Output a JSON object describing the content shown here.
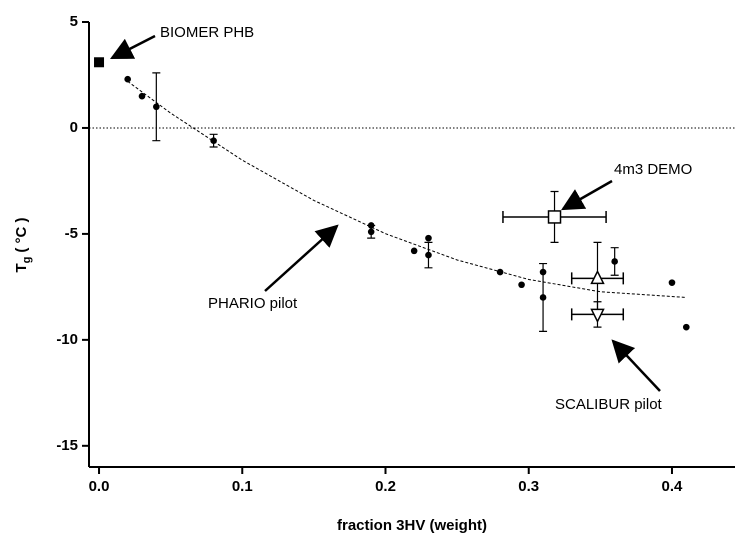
{
  "chart_data": {
    "type": "scatter",
    "x_label": "fraction 3HV (weight)",
    "y_label": {
      "main": "T",
      "sub": "g",
      "unit": "( °C )"
    },
    "xlim": [
      -0.007,
      0.444
    ],
    "ylim": [
      -16,
      5
    ],
    "xticks": [
      {
        "value": 0,
        "label": "0.0"
      },
      0.1,
      0.2,
      0.3,
      0.4
    ],
    "yticks": [
      5,
      0,
      -5,
      -10,
      -15
    ],
    "reference_line": 0,
    "color": "#000000",
    "series": [
      {
        "marker": "dot",
        "x": [
          0.02,
          0.03,
          0.04,
          0.08,
          0.19,
          0.19,
          0.22,
          0.23,
          0.23,
          0.28,
          0.295,
          0.31,
          0.31,
          0.36,
          0.4,
          0.41
        ],
        "values": [
          2.3,
          1.5,
          1.0,
          -0.6,
          -4.6,
          -4.9,
          -5.8,
          -5.2,
          -6.0,
          -6.8,
          -7.4,
          -6.8,
          -8.0,
          -6.3,
          -7.3,
          -9.4
        ],
        "yerr": [
          null,
          null,
          1.6,
          0.3,
          null,
          0.3,
          null,
          null,
          0.6,
          null,
          null,
          null,
          1.6,
          0.65,
          null,
          null
        ]
      },
      {
        "marker": "filled-square",
        "x": [
          0
        ],
        "values": [
          3.1
        ]
      },
      {
        "marker": "open-square",
        "x": [
          0.318
        ],
        "values": [
          -4.2
        ],
        "xerr": [
          0.036
        ],
        "yerr": [
          1.2
        ]
      },
      {
        "marker": "triangle-up",
        "x": [
          0.348
        ],
        "values": [
          -7.1
        ],
        "xerr": [
          0.018
        ],
        "yerr": [
          1.7
        ]
      },
      {
        "marker": "triangle-down",
        "x": [
          0.348
        ],
        "values": [
          -8.8
        ],
        "xerr": [
          0.018
        ],
        "yerr": [
          0.6
        ]
      }
    ],
    "fit": {
      "x": [
        0.02,
        0.05,
        0.1,
        0.15,
        0.2,
        0.25,
        0.3,
        0.35,
        0.41
      ],
      "values": [
        2.2,
        0.7,
        -1.52,
        -3.42,
        -4.99,
        -6.23,
        -7.15,
        -7.73,
        -8.0
      ]
    },
    "annotations": [
      "BIOMER PHB",
      "4m3 DEMO",
      "PHARIO pilot",
      "SCALIBUR pilot"
    ]
  }
}
